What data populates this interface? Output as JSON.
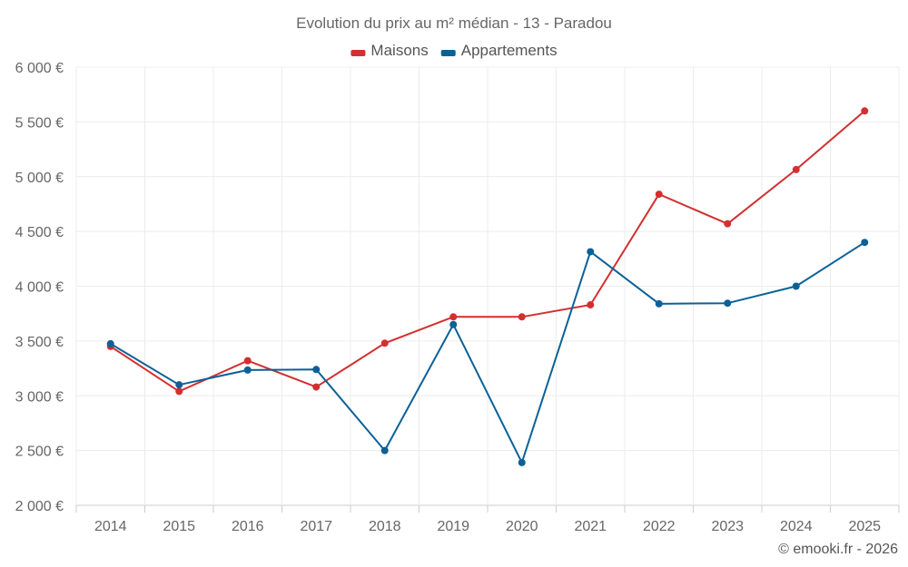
{
  "chart_data": {
    "type": "line",
    "title": "Evolution du prix au m² médian - 13 - Paradou",
    "categories": [
      "2014",
      "2015",
      "2016",
      "2017",
      "2018",
      "2019",
      "2020",
      "2021",
      "2022",
      "2023",
      "2024",
      "2025"
    ],
    "series": [
      {
        "name": "Maisons",
        "color": "#d32f2f",
        "values": [
          3450,
          3040,
          3320,
          3080,
          3480,
          3720,
          3720,
          3830,
          4840,
          4570,
          5065,
          5600
        ]
      },
      {
        "name": "Appartements",
        "color": "#0b6197",
        "values": [
          3475,
          3100,
          3235,
          3240,
          2500,
          3650,
          2390,
          4315,
          3840,
          3845,
          4000,
          4400
        ]
      }
    ],
    "ylim": [
      2000,
      6000
    ],
    "yticks": [
      2000,
      2500,
      3000,
      3500,
      4000,
      4500,
      5000,
      5500,
      6000
    ],
    "ytick_labels": [
      "2 000 €",
      "2 500 €",
      "3 000 €",
      "3 500 €",
      "4 000 €",
      "4 500 €",
      "5 000 €",
      "5 500 €",
      "6 000 €"
    ],
    "xlabel": "",
    "ylabel": "",
    "grid": true,
    "legend_position": "top-center"
  },
  "credit": "© emooki.fr - 2026"
}
